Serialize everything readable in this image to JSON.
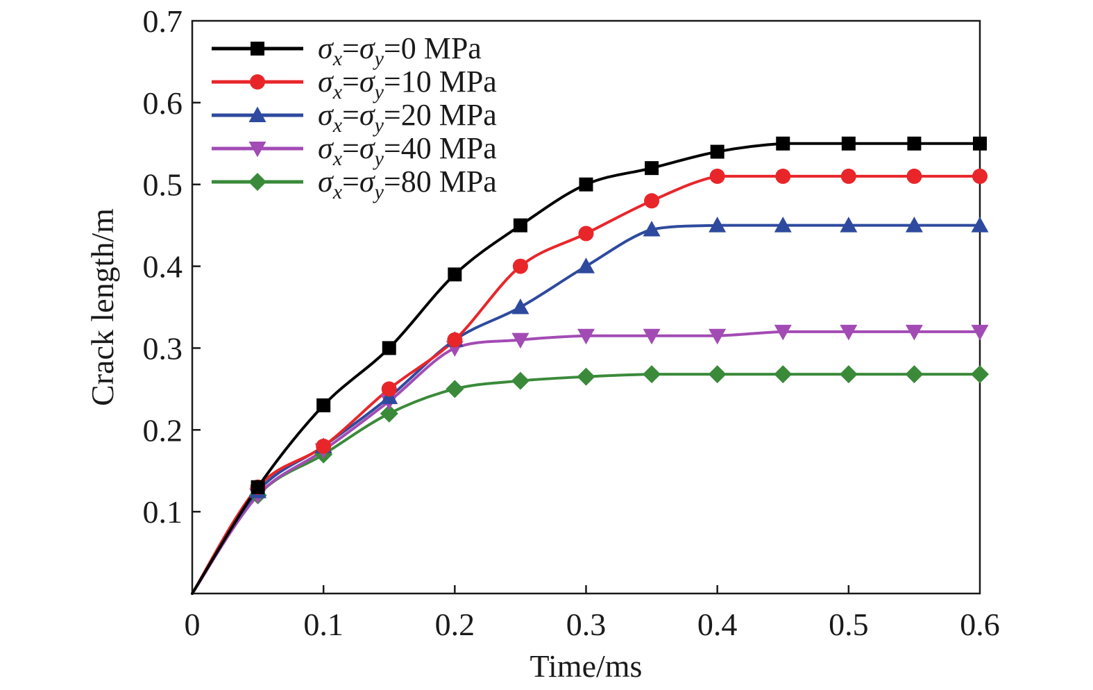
{
  "chart_data": {
    "type": "line",
    "xlabel": "Time/ms",
    "ylabel": "Crack length/m",
    "xlim": [
      0,
      0.6
    ],
    "ylim": [
      0,
      0.7
    ],
    "xticks": [
      "0",
      "0.1",
      "0.2",
      "0.3",
      "0.4",
      "0.5",
      "0.6"
    ],
    "yticks": [
      "0.1",
      "0.2",
      "0.3",
      "0.4",
      "0.5",
      "0.6",
      "0.7"
    ],
    "grid": false,
    "legend_position": "top-left",
    "x": [
      0,
      0.05,
      0.1,
      0.15,
      0.2,
      0.25,
      0.3,
      0.35,
      0.4,
      0.45,
      0.5,
      0.55,
      0.6
    ],
    "series": [
      {
        "name": "σx=σy=0 MPa",
        "label_parts": {
          "sigma": "σ",
          "sub_x": "x",
          "eq": "=",
          "sub_y": "y",
          "value": "=0 MPa"
        },
        "color": "#000000",
        "marker": "square",
        "values": [
          0,
          0.13,
          0.23,
          0.3,
          0.39,
          0.45,
          0.5,
          0.52,
          0.54,
          0.55,
          0.55,
          0.55,
          0.55
        ]
      },
      {
        "name": "σx=σy=10 MPa",
        "label_parts": {
          "sigma": "σ",
          "sub_x": "x",
          "eq": "=",
          "sub_y": "y",
          "value": "=10 MPa"
        },
        "color": "#e8262a",
        "marker": "circle",
        "values": [
          0,
          0.13,
          0.18,
          0.25,
          0.31,
          0.4,
          0.44,
          0.48,
          0.51,
          0.51,
          0.51,
          0.51,
          0.51
        ]
      },
      {
        "name": "σx=σy=20 MPa",
        "label_parts": {
          "sigma": "σ",
          "sub_x": "x",
          "eq": "=",
          "sub_y": "y",
          "value": "=20 MPa"
        },
        "color": "#2e4a9e",
        "marker": "triangle-up",
        "values": [
          0,
          0.125,
          0.18,
          0.24,
          0.31,
          0.35,
          0.4,
          0.445,
          0.45,
          0.45,
          0.45,
          0.45,
          0.45
        ]
      },
      {
        "name": "σx=σy=40 MPa",
        "label_parts": {
          "sigma": "σ",
          "sub_x": "x",
          "eq": "=",
          "sub_y": "y",
          "value": "=40 MPa"
        },
        "color": "#a24bb4",
        "marker": "triangle-down",
        "values": [
          0,
          0.12,
          0.175,
          0.235,
          0.3,
          0.31,
          0.315,
          0.315,
          0.315,
          0.32,
          0.32,
          0.32,
          0.32
        ]
      },
      {
        "name": "σx=σy=80 MPa",
        "label_parts": {
          "sigma": "σ",
          "sub_x": "x",
          "eq": "=",
          "sub_y": "y",
          "value": "=80 MPa"
        },
        "color": "#3a8a3a",
        "marker": "diamond",
        "values": [
          0,
          0.12,
          0.17,
          0.22,
          0.25,
          0.26,
          0.265,
          0.268,
          0.268,
          0.268,
          0.268,
          0.268,
          0.268
        ]
      }
    ]
  }
}
